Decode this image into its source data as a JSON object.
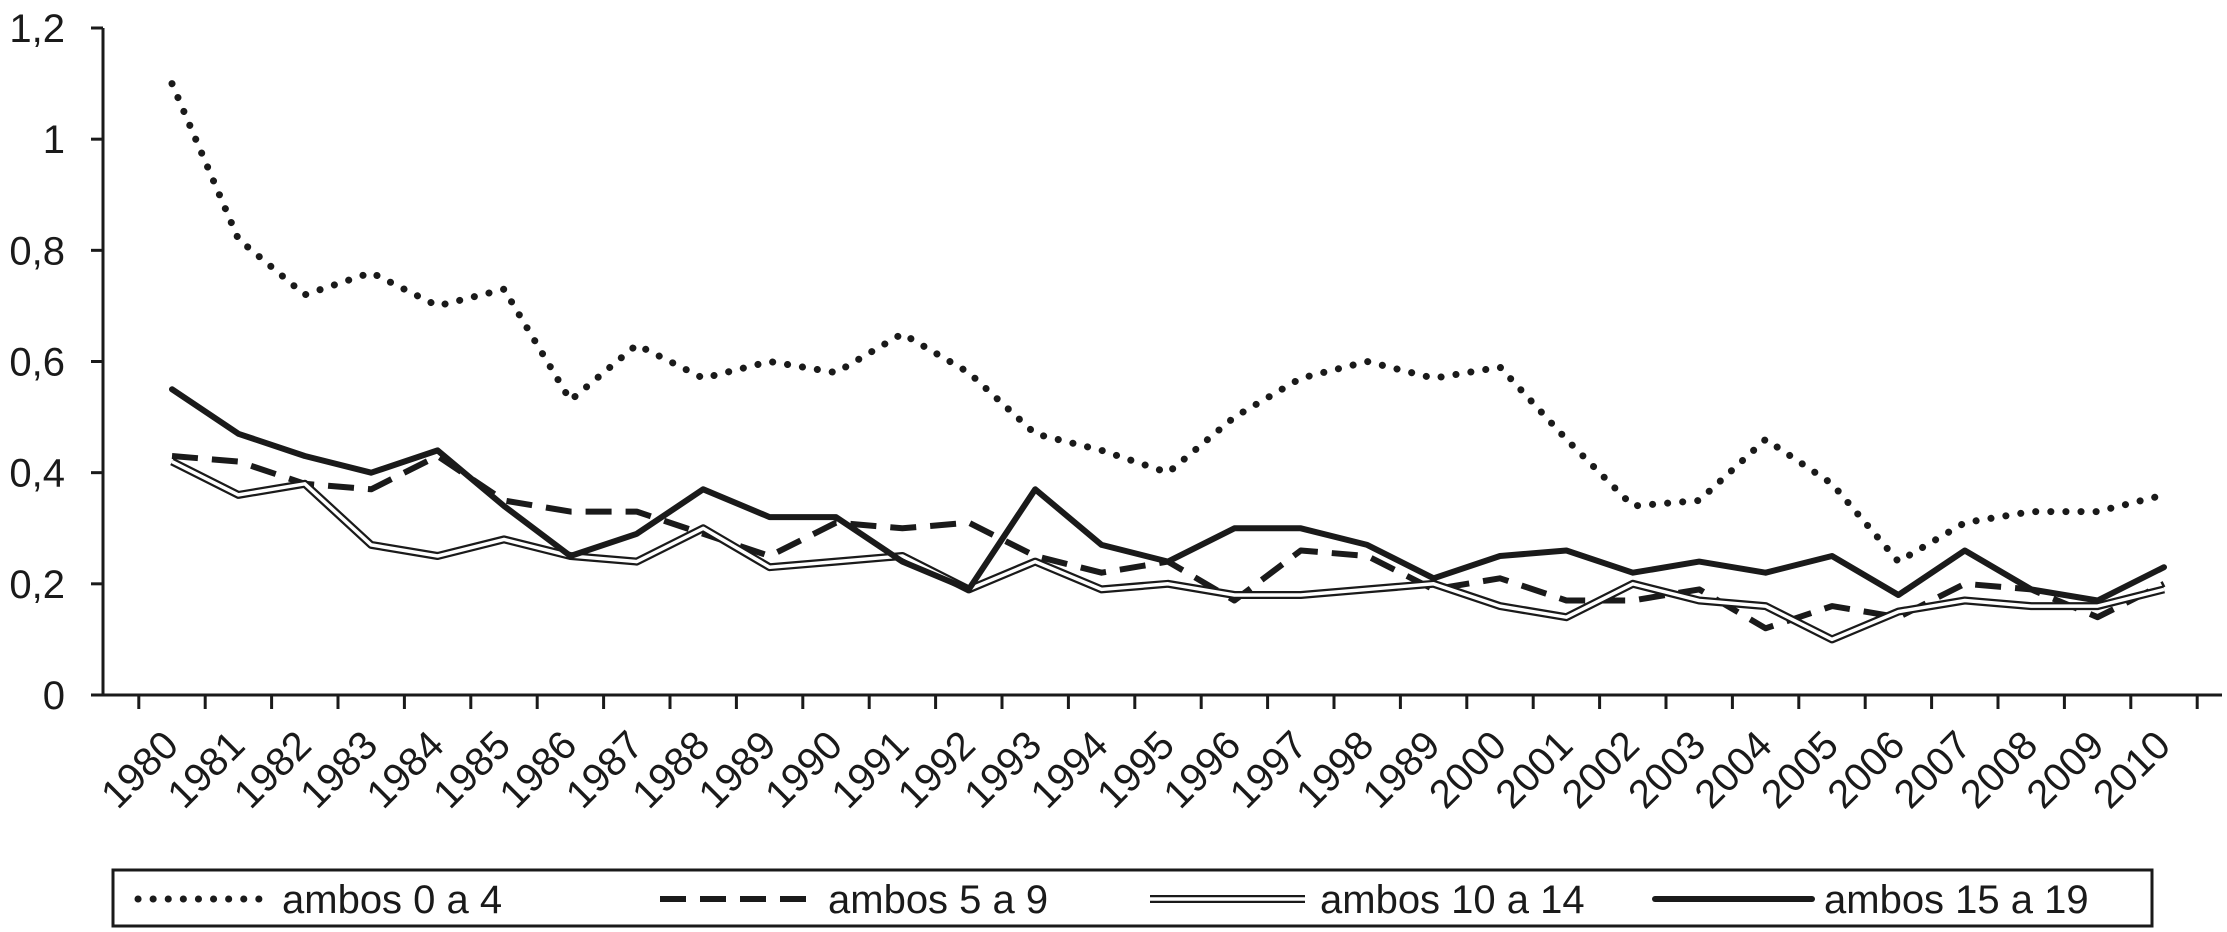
{
  "chart_data": {
    "type": "line",
    "x": [
      "1980",
      "1981",
      "1982",
      "1983",
      "1984",
      "1985",
      "1986",
      "1987",
      "1988",
      "1989",
      "1990",
      "1991",
      "1992",
      "1993",
      "1994",
      "1995",
      "1996",
      "1997",
      "1998",
      "1989",
      "2000",
      "2001",
      "2002",
      "2003",
      "2004",
      "2005",
      "2006",
      "2007",
      "2008",
      "2009",
      "2010"
    ],
    "yticks": [
      "0",
      "0,2",
      "0,4",
      "0,6",
      "0,8",
      "1",
      "1,2"
    ],
    "ylim": [
      0,
      1.2
    ],
    "grid": false,
    "legend_position": "bottom",
    "series": [
      {
        "name": "ambos 0 a 4",
        "style": "dotted",
        "values": [
          1.1,
          0.82,
          0.72,
          0.76,
          0.7,
          0.73,
          0.53,
          0.63,
          0.57,
          0.6,
          0.58,
          0.65,
          0.58,
          0.47,
          0.44,
          0.4,
          0.5,
          0.57,
          0.6,
          0.57,
          0.59,
          0.46,
          0.34,
          0.35,
          0.46,
          0.38,
          0.24,
          0.31,
          0.33,
          0.33,
          0.36
        ]
      },
      {
        "name": "ambos 5 a 9",
        "style": "dashed",
        "values": [
          0.43,
          0.42,
          0.38,
          0.37,
          0.43,
          0.35,
          0.33,
          0.33,
          0.29,
          0.25,
          0.31,
          0.3,
          0.31,
          0.25,
          0.22,
          0.24,
          0.17,
          0.26,
          0.25,
          0.19,
          0.21,
          0.17,
          0.17,
          0.19,
          0.12,
          0.16,
          0.14,
          0.2,
          0.19,
          0.14,
          0.2
        ]
      },
      {
        "name": "ambos 10 a 14",
        "style": "double",
        "values": [
          0.42,
          0.36,
          0.38,
          0.27,
          0.25,
          0.28,
          0.25,
          0.24,
          0.3,
          0.23,
          0.24,
          0.25,
          0.19,
          0.24,
          0.19,
          0.2,
          0.18,
          0.18,
          0.19,
          0.2,
          0.16,
          0.14,
          0.2,
          0.17,
          0.16,
          0.1,
          0.15,
          0.17,
          0.16,
          0.16,
          0.19
        ]
      },
      {
        "name": "ambos 15 a 19",
        "style": "solid",
        "values": [
          0.55,
          0.47,
          0.43,
          0.4,
          0.44,
          0.34,
          0.25,
          0.29,
          0.37,
          0.32,
          0.32,
          0.24,
          0.19,
          0.37,
          0.27,
          0.24,
          0.3,
          0.3,
          0.27,
          0.21,
          0.25,
          0.26,
          0.22,
          0.24,
          0.22,
          0.25,
          0.18,
          0.26,
          0.19,
          0.17,
          0.23
        ]
      }
    ]
  }
}
